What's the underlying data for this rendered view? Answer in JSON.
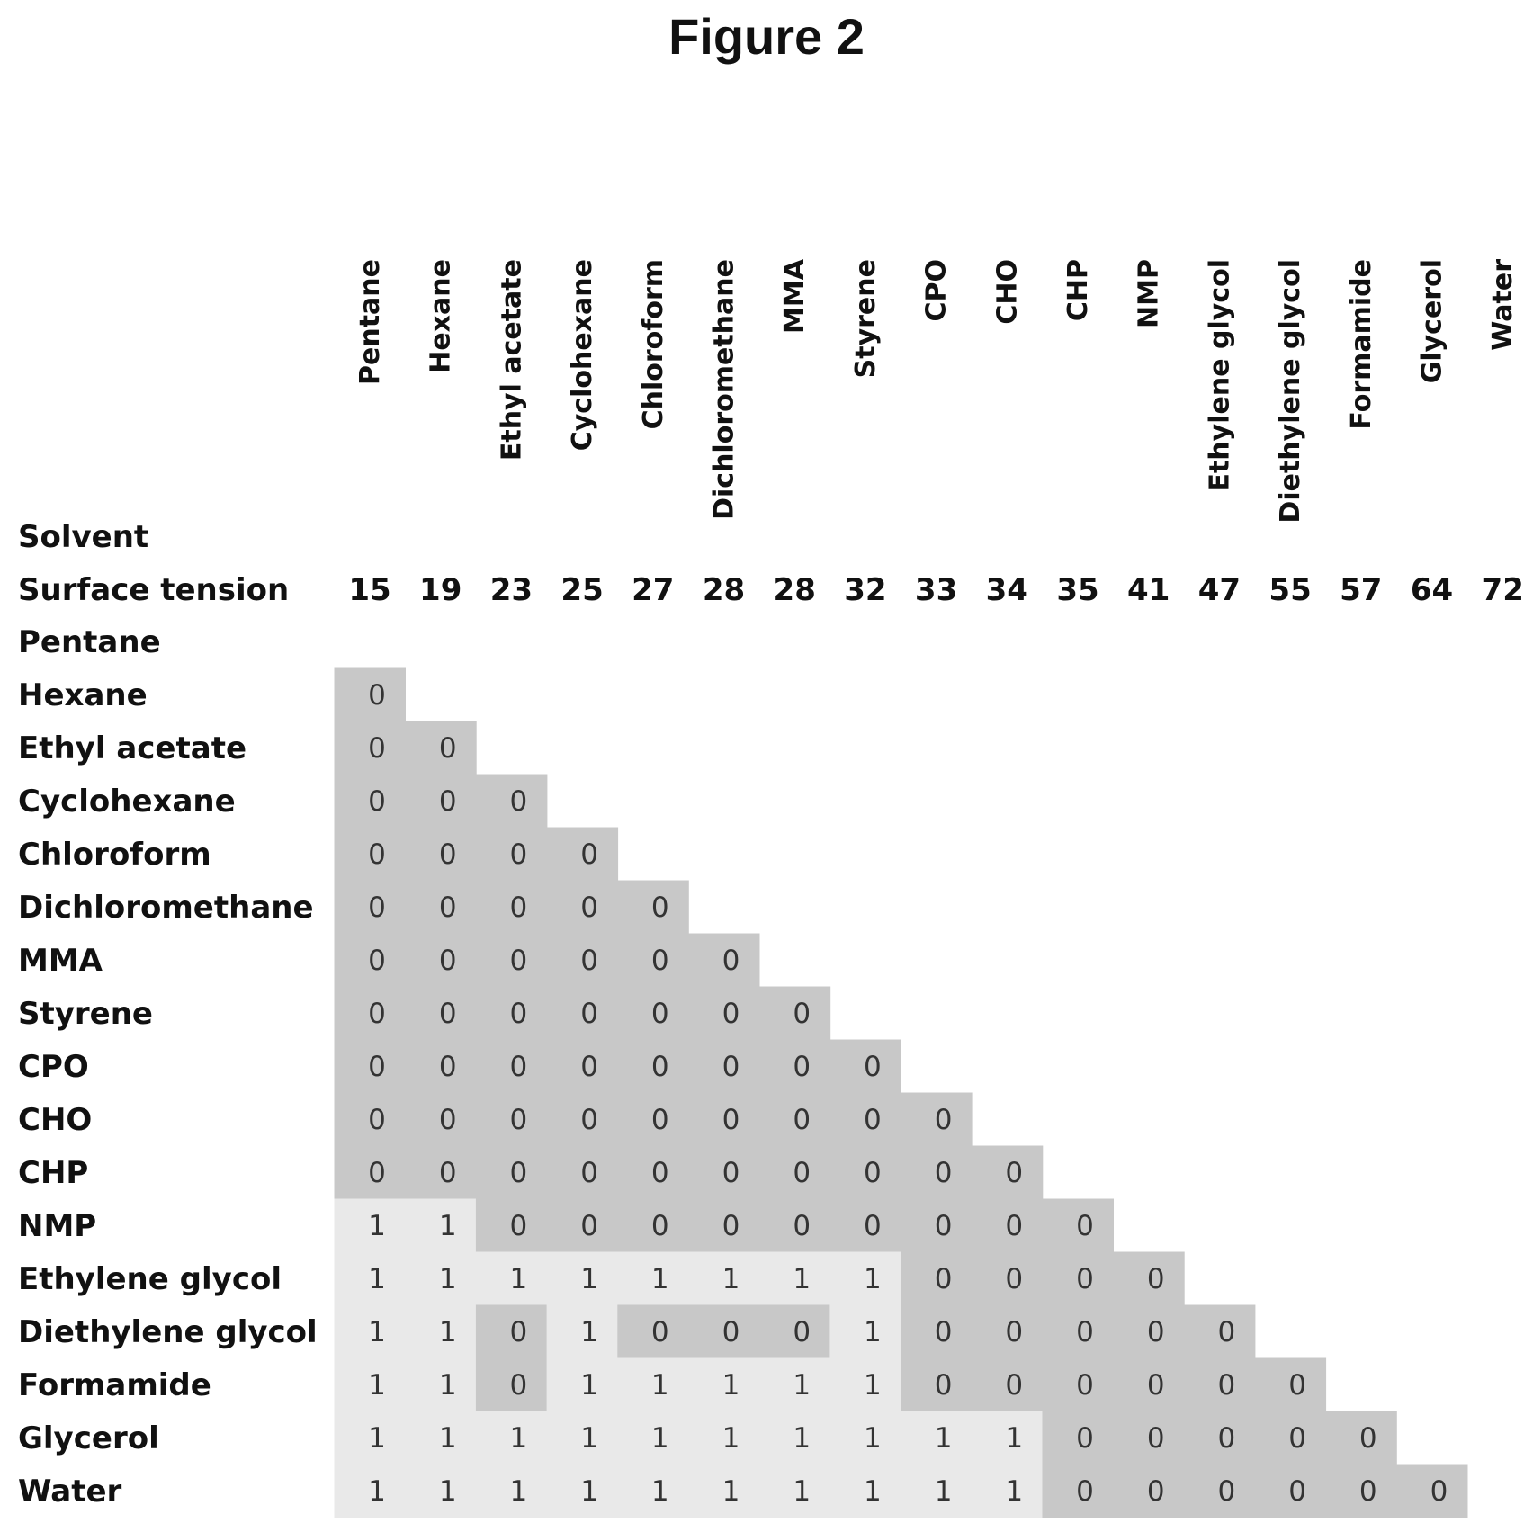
{
  "figure_title": "Figure 2",
  "chart_data": {
    "type": "table",
    "title": "Figure 2",
    "row_header_label": "Solvent",
    "value_row_label": "Surface tension",
    "columns": [
      "Pentane",
      "Hexane",
      "Ethyl acetate",
      "Cyclohexane",
      "Chloroform",
      "Dichloromethane",
      "MMA",
      "Styrene",
      "CPO",
      "CHO",
      "CHP",
      "NMP",
      "Ethylene glycol",
      "Diethylene glycol",
      "Formamide",
      "Glycerol",
      "Water"
    ],
    "surface_tension": [
      15,
      19,
      23,
      25,
      27,
      28,
      28,
      32,
      33,
      34,
      35,
      41,
      47,
      55,
      57,
      64,
      72
    ],
    "rows": [
      "Pentane",
      "Hexane",
      "Ethyl acetate",
      "Cyclohexane",
      "Chloroform",
      "Dichloromethane",
      "MMA",
      "Styrene",
      "CPO",
      "CHO",
      "CHP",
      "NMP",
      "Ethylene glycol",
      "Diethylene glycol",
      "Formamide",
      "Glycerol",
      "Water"
    ],
    "matrix": [
      [],
      [
        0
      ],
      [
        0,
        0
      ],
      [
        0,
        0,
        0
      ],
      [
        0,
        0,
        0,
        0
      ],
      [
        0,
        0,
        0,
        0,
        0
      ],
      [
        0,
        0,
        0,
        0,
        0,
        0
      ],
      [
        0,
        0,
        0,
        0,
        0,
        0,
        0
      ],
      [
        0,
        0,
        0,
        0,
        0,
        0,
        0,
        0
      ],
      [
        0,
        0,
        0,
        0,
        0,
        0,
        0,
        0,
        0
      ],
      [
        0,
        0,
        0,
        0,
        0,
        0,
        0,
        0,
        0,
        0
      ],
      [
        1,
        1,
        0,
        0,
        0,
        0,
        0,
        0,
        0,
        0,
        0
      ],
      [
        1,
        1,
        1,
        1,
        1,
        1,
        1,
        1,
        0,
        0,
        0,
        0
      ],
      [
        1,
        1,
        0,
        1,
        0,
        0,
        0,
        1,
        0,
        0,
        0,
        0,
        0
      ],
      [
        1,
        1,
        0,
        1,
        1,
        1,
        1,
        1,
        0,
        0,
        0,
        0,
        0,
        0
      ],
      [
        1,
        1,
        1,
        1,
        1,
        1,
        1,
        1,
        1,
        1,
        0,
        0,
        0,
        0,
        0
      ],
      [
        1,
        1,
        1,
        1,
        1,
        1,
        1,
        1,
        1,
        1,
        0,
        0,
        0,
        0,
        0,
        0
      ]
    ],
    "colors": {
      "zero_cell": "#c8c8c8",
      "one_cell": "#e9e9e9"
    }
  }
}
